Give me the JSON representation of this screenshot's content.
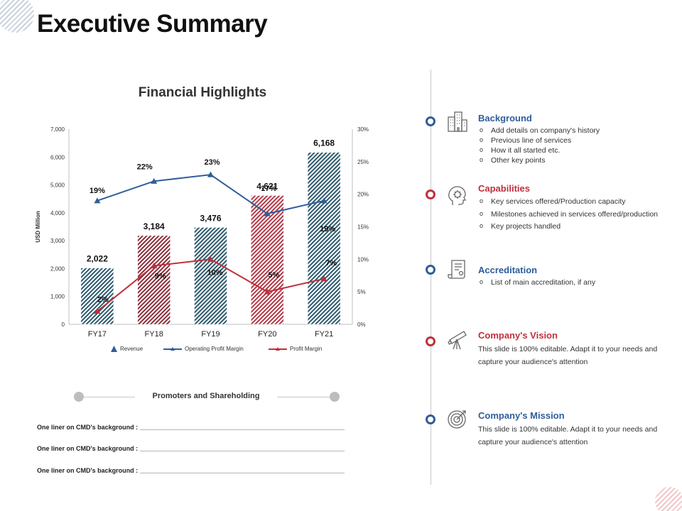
{
  "page": {
    "title": "Executive Summary"
  },
  "chart_data": {
    "type": "bar",
    "title": "Financial Highlights",
    "categories": [
      "FY17",
      "FY18",
      "FY19",
      "FY20",
      "FY21"
    ],
    "ylabel": "USD Million",
    "ylim": [
      0,
      7000
    ],
    "y_ticks": [
      "0",
      "1,000",
      "2,000",
      "3,000",
      "4,000",
      "5,000",
      "6,000",
      "7,000"
    ],
    "y2lim": [
      0,
      30
    ],
    "y2_ticks": [
      "0%",
      "5%",
      "10%",
      "15%",
      "20%",
      "25%",
      "30%"
    ],
    "revenue": {
      "name": "Revenue",
      "values": [
        2022,
        3184,
        3476,
        4621,
        6168
      ],
      "labels": [
        "2,022",
        "3,184",
        "3,476",
        "4,621",
        "6,168"
      ],
      "colors": [
        "#2e5a6e",
        "#8a2e3a",
        "#2e5a6e",
        "#b23a48",
        "#2e5a6e"
      ]
    },
    "operating_margin": {
      "name": "Operating Profit Margin",
      "values": [
        19,
        22,
        23,
        17,
        19
      ],
      "labels": [
        "19%",
        "22%",
        "23%",
        "17%",
        "19%"
      ],
      "color": "#2f5d9a"
    },
    "profit_margin": {
      "name": "Profit Margin",
      "values": [
        2,
        9,
        10,
        5,
        7
      ],
      "labels": [
        "2%",
        "9%",
        "10%",
        "5%",
        "7%"
      ],
      "color": "#c0303a"
    }
  },
  "promoters": {
    "title": "Promoters and Shareholding",
    "rows": [
      "One liner on CMD's background :",
      "One liner on CMD's background :",
      "One liner on CMD's background :"
    ]
  },
  "sections": [
    {
      "title": "Background",
      "color": "#2f5d9a",
      "icon": "building-icon",
      "bullets": [
        "Add details on company's history",
        "Previous line of services",
        "How it all started etc.",
        "Other key points"
      ]
    },
    {
      "title": "Capabilities",
      "color": "#c0303a",
      "icon": "head-gear-icon",
      "bullets": [
        "Key services offered/Production capacity",
        "Milestones achieved in services offered/production",
        "Key projects handled"
      ]
    },
    {
      "title": "Accreditation",
      "color": "#2f5d9a",
      "icon": "certificate-icon",
      "bullets": [
        "List of main accreditation, if any"
      ]
    },
    {
      "title": "Company's Vision",
      "color": "#c0303a",
      "icon": "telescope-icon",
      "text": "This slide is 100% editable. Adapt it to your needs and capture your audience's attention"
    },
    {
      "title": "Company's Mission",
      "color": "#2f5d9a",
      "icon": "target-icon",
      "text": "This slide is 100% editable. Adapt it to your needs and capture your audience's attention"
    }
  ]
}
